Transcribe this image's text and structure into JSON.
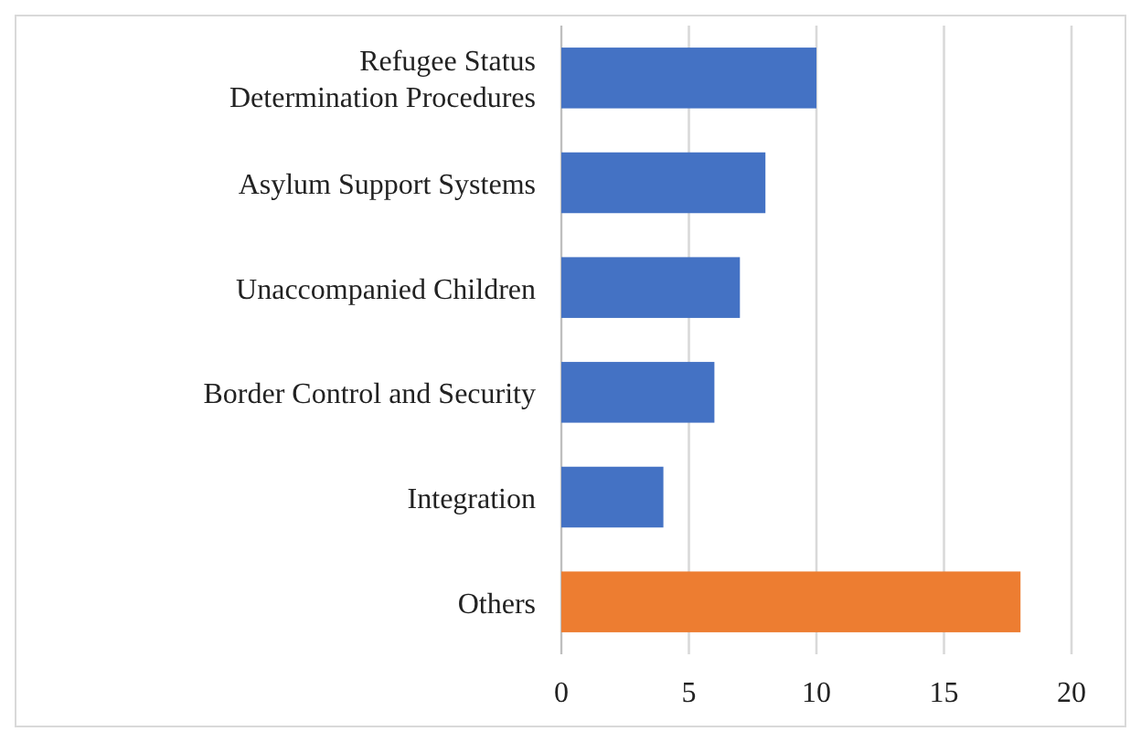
{
  "chart_data": {
    "type": "bar",
    "orientation": "horizontal",
    "categories": [
      "Refugee Status Determination Procedures",
      "Asylum Support Systems",
      "Unaccompanied Children",
      "Border Control and Security",
      "Integration",
      "Others"
    ],
    "values": [
      10,
      8,
      7,
      6,
      4,
      18
    ],
    "colors": [
      "#4472c4",
      "#4472c4",
      "#4472c4",
      "#4472c4",
      "#4472c4",
      "#ed7d31"
    ],
    "xlim": [
      0,
      20
    ],
    "xticks": [
      0,
      5,
      10,
      15,
      20
    ],
    "grid": "x"
  }
}
